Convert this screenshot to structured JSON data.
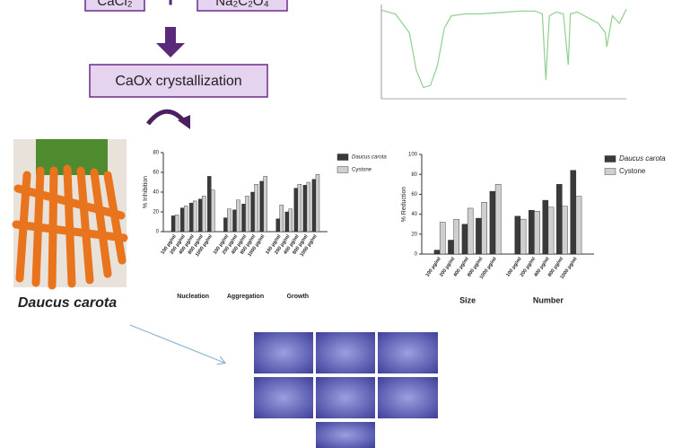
{
  "flow": {
    "reagents": [
      "CaCl₂",
      "Na₂C₂O₄"
    ],
    "plus": "+",
    "process": "CaOx crystallization"
  },
  "plant_label": "Daucus carota",
  "chart_data": [
    {
      "type": "bar",
      "y_label": "% Inhibition",
      "ylim": [
        0,
        80
      ],
      "yticks": [
        0,
        20,
        40,
        60,
        80
      ],
      "categories": [
        "100 µg/ml",
        "200 µg/ml",
        "400 µg/ml",
        "800 µg/ml",
        "1000 µg/ml",
        "100 µg/ml",
        "200 µg/ml",
        "400 µg/ml",
        "800 µg/ml",
        "1000 µg/ml",
        "100 µg/ml",
        "200 µg/ml",
        "400 µg/ml",
        "800 µg/ml",
        "1000 µg/ml"
      ],
      "groups": [
        "Nucleation",
        "Aggregation",
        "Growth"
      ],
      "series": [
        {
          "name": "Daucus carota",
          "color": "#3a3a3a",
          "values": [
            16,
            24,
            29,
            33,
            56,
            14,
            22,
            28,
            40,
            51,
            13,
            20,
            44,
            47,
            53
          ]
        },
        {
          "name": "Cystone",
          "color": "#cfcfcf",
          "values": [
            17,
            26,
            31,
            36,
            42,
            23,
            32,
            36,
            48,
            56,
            27,
            23,
            48,
            50,
            58
          ]
        }
      ]
    },
    {
      "type": "bar",
      "y_label": "% Reduction",
      "ylim": [
        0,
        100
      ],
      "yticks": [
        0,
        20,
        40,
        60,
        80,
        100
      ],
      "categories": [
        "100 µg/ml",
        "200 µg/ml",
        "400 µg/ml",
        "800 µg/ml",
        "1000 µg/ml",
        "100 µg/ml",
        "200 µg/ml",
        "400 µg/ml",
        "800 µg/ml",
        "1000 µg/ml"
      ],
      "groups": [
        "Size",
        "Number"
      ],
      "series": [
        {
          "name": "Daucus carota",
          "color": "#3a3a3a",
          "values": [
            4,
            14,
            30,
            36,
            63,
            38,
            44,
            54,
            70,
            84
          ]
        },
        {
          "name": "Cystone",
          "color": "#cfcfcf",
          "values": [
            32,
            35,
            46,
            52,
            70,
            35,
            43,
            47,
            48,
            58
          ]
        }
      ]
    },
    {
      "type": "line",
      "color": "#8fcf8f",
      "xlim": [
        4000,
        500
      ],
      "ylim": [
        0,
        100
      ],
      "x": [
        4000,
        3800,
        3600,
        3500,
        3400,
        3300,
        3200,
        3100,
        3000,
        2800,
        2600,
        2400,
        2200,
        2000,
        1800,
        1700,
        1650,
        1600,
        1500,
        1400,
        1330,
        1300,
        1200,
        1100,
        1000,
        900,
        800,
        780,
        700,
        600,
        500
      ],
      "values": [
        94,
        90,
        70,
        30,
        12,
        14,
        35,
        75,
        88,
        90,
        90,
        91,
        92,
        93,
        93,
        90,
        20,
        88,
        92,
        90,
        36,
        90,
        92,
        88,
        84,
        80,
        70,
        55,
        88,
        80,
        95
      ]
    }
  ]
}
